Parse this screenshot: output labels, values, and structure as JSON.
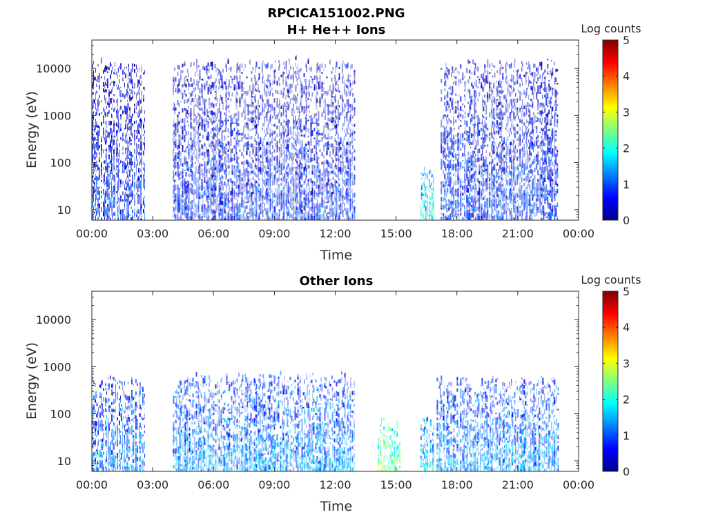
{
  "figure": {
    "filename_title": "RPCICA151002.PNG"
  },
  "chart_data": [
    {
      "type": "heatmap",
      "title": "H+ He++ Ions",
      "xlabel": "Time",
      "ylabel": "Energy (eV)",
      "x_ticks": [
        "00:00",
        "03:00",
        "06:00",
        "09:00",
        "12:00",
        "15:00",
        "18:00",
        "21:00",
        "00:00"
      ],
      "x_range_hours": [
        0,
        24
      ],
      "y_scale": "log",
      "y_range_eV": [
        6,
        40000
      ],
      "y_ticks": [
        {
          "value": 10,
          "label": "10"
        },
        {
          "value": 100,
          "label": "100"
        },
        {
          "value": 1000,
          "label": "1000"
        },
        {
          "value": 10000,
          "label": "10000"
        }
      ],
      "colorbar": {
        "label": "Log counts",
        "range": [
          0,
          5
        ],
        "ticks": [
          "0",
          "1",
          "2",
          "3",
          "4",
          "5"
        ],
        "colormap": "jet"
      },
      "data_segments_hours": [
        {
          "start": 0.0,
          "end": 2.6,
          "upper_eV": 15000,
          "level": 0.8
        },
        {
          "start": 4.0,
          "end": 12.95,
          "upper_eV": 16000,
          "level": 0.8
        },
        {
          "start": 16.2,
          "end": 16.85,
          "upper_eV": 80,
          "level": 2.0
        },
        {
          "start": 17.2,
          "end": 23.0,
          "upper_eV": 15000,
          "level": 0.9
        }
      ]
    },
    {
      "type": "heatmap",
      "title": "Other Ions",
      "xlabel": "Time",
      "ylabel": "Energy (eV)",
      "x_ticks": [
        "00:00",
        "03:00",
        "06:00",
        "09:00",
        "12:00",
        "15:00",
        "18:00",
        "21:00",
        "00:00"
      ],
      "x_range_hours": [
        0,
        24
      ],
      "y_scale": "log",
      "y_range_eV": [
        6,
        40000
      ],
      "y_ticks": [
        {
          "value": 10,
          "label": "10"
        },
        {
          "value": 100,
          "label": "100"
        },
        {
          "value": 1000,
          "label": "1000"
        },
        {
          "value": 10000,
          "label": "10000"
        }
      ],
      "colorbar": {
        "label": "Log counts",
        "range": [
          0,
          5
        ],
        "ticks": [
          "0",
          "1",
          "2",
          "3",
          "4",
          "5"
        ],
        "colormap": "jet"
      },
      "data_segments_hours": [
        {
          "start": 0.0,
          "end": 2.6,
          "upper_eV": 600,
          "level": 1.3
        },
        {
          "start": 4.0,
          "end": 12.95,
          "upper_eV": 700,
          "level": 1.4
        },
        {
          "start": 14.1,
          "end": 15.2,
          "upper_eV": 80,
          "level": 2.5
        },
        {
          "start": 16.2,
          "end": 16.85,
          "upper_eV": 80,
          "level": 1.8
        },
        {
          "start": 17.0,
          "end": 23.0,
          "upper_eV": 600,
          "level": 1.4
        }
      ]
    }
  ]
}
